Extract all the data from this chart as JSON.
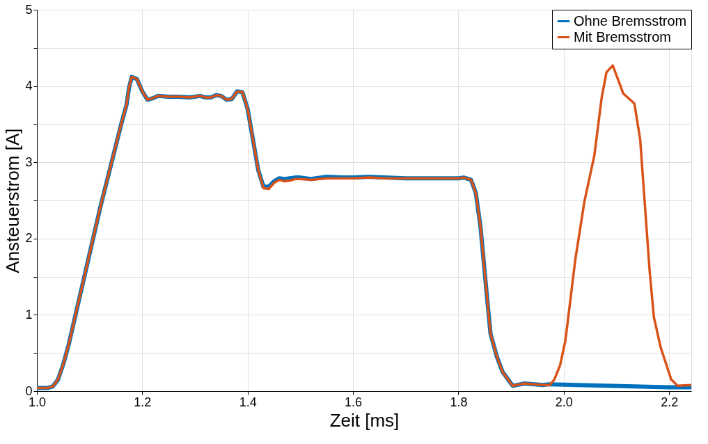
{
  "chart_data": {
    "type": "line",
    "xlabel": "Zeit [ms]",
    "ylabel": "Ansteuerstrom [A]",
    "xlim": [
      1.0,
      2.242
    ],
    "ylim": [
      0,
      5
    ],
    "xticks": [
      {
        "value": 1.0,
        "label": "1.0"
      },
      {
        "value": 1.2,
        "label": "1.2"
      },
      {
        "value": 1.4,
        "label": "1.4"
      },
      {
        "value": 1.6,
        "label": "1.6"
      },
      {
        "value": 1.8,
        "label": "1.8"
      },
      {
        "value": 2.0,
        "label": "2.0"
      },
      {
        "value": 2.2,
        "label": "2.2"
      }
    ],
    "yticks": [
      0,
      {
        "value": 0.5,
        "label": null
      },
      1,
      {
        "value": 1.5,
        "label": null
      },
      2,
      {
        "value": 2.5,
        "label": null
      },
      3,
      {
        "value": 3.5,
        "label": null
      },
      4,
      {
        "value": 4.5,
        "label": null
      },
      5
    ],
    "grid": true,
    "legend": "top right",
    "line_style": "solid",
    "marker": "none",
    "series": [
      {
        "name": "Ohne Bremsstrom",
        "color": "#0072bd",
        "x": [
          1.0,
          1.02,
          1.03,
          1.04,
          1.05,
          1.06,
          1.08,
          1.1,
          1.12,
          1.14,
          1.16,
          1.17,
          1.175,
          1.18,
          1.19,
          1.2,
          1.21,
          1.22,
          1.23,
          1.25,
          1.27,
          1.29,
          1.31,
          1.32,
          1.33,
          1.34,
          1.35,
          1.36,
          1.37,
          1.38,
          1.39,
          1.4,
          1.41,
          1.42,
          1.43,
          1.44,
          1.45,
          1.46,
          1.47,
          1.48,
          1.49,
          1.5,
          1.52,
          1.55,
          1.58,
          1.6,
          1.63,
          1.66,
          1.7,
          1.75,
          1.8,
          1.81,
          1.824,
          1.833,
          1.842,
          1.855,
          1.861,
          1.873,
          1.884,
          1.903,
          1.926,
          1.96,
          1.973,
          2.2,
          2.242
        ],
        "values": [
          0.04,
          0.04,
          0.06,
          0.15,
          0.35,
          0.6,
          1.2,
          1.8,
          2.4,
          2.95,
          3.5,
          3.75,
          3.98,
          4.12,
          4.09,
          3.93,
          3.82,
          3.84,
          3.87,
          3.86,
          3.86,
          3.85,
          3.87,
          3.85,
          3.85,
          3.88,
          3.87,
          3.82,
          3.83,
          3.93,
          3.92,
          3.7,
          3.3,
          2.9,
          2.68,
          2.68,
          2.75,
          2.79,
          2.78,
          2.79,
          2.8,
          2.8,
          2.78,
          2.81,
          2.8,
          2.8,
          2.81,
          2.8,
          2.79,
          2.79,
          2.79,
          2.8,
          2.77,
          2.6,
          2.15,
          1.18,
          0.75,
          0.45,
          0.25,
          0.07,
          0.1,
          0.08,
          0.09,
          0.05,
          0.05
        ]
      },
      {
        "name": "Mit Bremsstrom",
        "color": "#d95319",
        "x": [
          1.0,
          1.02,
          1.03,
          1.04,
          1.05,
          1.06,
          1.08,
          1.1,
          1.12,
          1.14,
          1.16,
          1.17,
          1.175,
          1.18,
          1.19,
          1.2,
          1.21,
          1.22,
          1.23,
          1.25,
          1.27,
          1.29,
          1.31,
          1.32,
          1.33,
          1.34,
          1.35,
          1.36,
          1.37,
          1.38,
          1.39,
          1.4,
          1.41,
          1.42,
          1.43,
          1.44,
          1.45,
          1.46,
          1.47,
          1.48,
          1.49,
          1.5,
          1.52,
          1.55,
          1.58,
          1.6,
          1.63,
          1.66,
          1.7,
          1.75,
          1.8,
          1.81,
          1.824,
          1.833,
          1.842,
          1.855,
          1.861,
          1.873,
          1.884,
          1.903,
          1.926,
          1.96,
          1.973,
          1.982,
          1.993,
          2.003,
          2.022,
          2.039,
          2.058,
          2.072,
          2.081,
          2.093,
          2.113,
          2.134,
          2.145,
          2.163,
          2.171,
          2.184,
          2.204,
          2.216,
          2.242
        ],
        "values": [
          0.04,
          0.04,
          0.06,
          0.15,
          0.35,
          0.6,
          1.2,
          1.8,
          2.4,
          2.95,
          3.5,
          3.75,
          3.98,
          4.12,
          4.09,
          3.93,
          3.82,
          3.84,
          3.87,
          3.86,
          3.86,
          3.85,
          3.87,
          3.85,
          3.85,
          3.88,
          3.87,
          3.82,
          3.83,
          3.93,
          3.92,
          3.7,
          3.3,
          2.9,
          2.66,
          2.65,
          2.73,
          2.77,
          2.75,
          2.76,
          2.78,
          2.78,
          2.77,
          2.79,
          2.79,
          2.79,
          2.8,
          2.79,
          2.79,
          2.79,
          2.79,
          2.8,
          2.77,
          2.6,
          2.15,
          1.18,
          0.75,
          0.45,
          0.25,
          0.07,
          0.1,
          0.08,
          0.08,
          0.15,
          0.34,
          0.66,
          1.73,
          2.48,
          3.09,
          3.85,
          4.18,
          4.27,
          3.9,
          3.77,
          3.3,
          1.57,
          0.97,
          0.57,
          0.15,
          0.07,
          0.08
        ]
      }
    ]
  }
}
